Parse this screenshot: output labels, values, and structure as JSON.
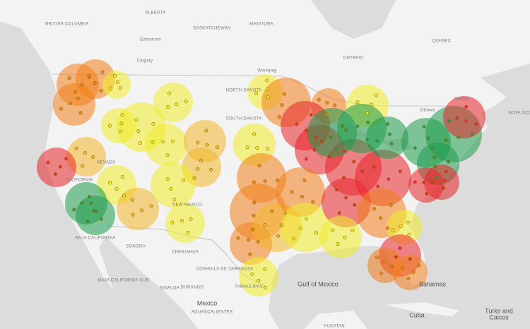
{
  "labels": [
    {
      "text": "BRITISH COLUMBIA"
    },
    {
      "text": "ALBERTA"
    },
    {
      "text": "Edmonton"
    },
    {
      "text": "Calgary"
    },
    {
      "text": "SASKATCHEWAN"
    },
    {
      "text": "MANITOBA"
    },
    {
      "text": "Winnipeg"
    },
    {
      "text": "ONTARIO"
    },
    {
      "text": "QUEBEC"
    },
    {
      "text": "Ottawa"
    },
    {
      "text": "Québec"
    },
    {
      "text": "NOVA SCO"
    },
    {
      "text": "NORTH DAKOTA"
    },
    {
      "text": "SOUTH DAKOTA"
    },
    {
      "text": "NEVADA"
    },
    {
      "text": "CALIFORNIA"
    },
    {
      "text": "NEW MEXICO"
    },
    {
      "text": "BAJA CALIFORNIA"
    },
    {
      "text": "SONORA"
    },
    {
      "text": "CHIHUAHUA"
    },
    {
      "text": "COAHUILA DE ZARAGOZA"
    },
    {
      "text": "BAJA CALIFORNIA SUR"
    },
    {
      "text": "SINALOA"
    },
    {
      "text": "DURANGO"
    },
    {
      "text": "TAMAULIPAS"
    },
    {
      "text": "Gulf of Mexico"
    },
    {
      "text": "Mexico"
    },
    {
      "text": "AGUASCALIENTES"
    },
    {
      "text": "Cuba"
    },
    {
      "text": "Bahamas"
    },
    {
      "text": "Turks and"
    },
    {
      "text": "Caicos"
    },
    {
      "text": "YUCATAN"
    }
  ]
}
